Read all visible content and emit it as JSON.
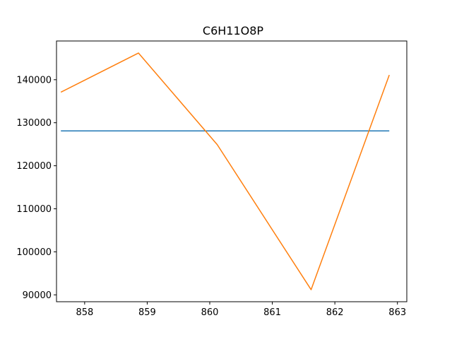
{
  "chart_data": {
    "type": "line",
    "title": "C6H11O8P",
    "xlabel": "",
    "ylabel": "",
    "xlim": [
      857.55,
      863.15
    ],
    "ylim": [
      88400,
      149000
    ],
    "x_ticks": [
      858,
      859,
      860,
      861,
      862,
      863
    ],
    "y_ticks": [
      90000,
      100000,
      110000,
      120000,
      130000,
      140000
    ],
    "x_tick_labels": [
      "858",
      "859",
      "860",
      "861",
      "862",
      "863"
    ],
    "y_tick_labels": [
      "90000",
      "100000",
      "110000",
      "120000",
      "130000",
      "140000"
    ],
    "grid": false,
    "legend": "none",
    "series": [
      {
        "color": "#1f77b4",
        "x": [
          857.62,
          862.87
        ],
        "y": [
          128100,
          128100
        ]
      },
      {
        "color": "#ff7f0e",
        "x": [
          857.62,
          858.86,
          860.12,
          861.62,
          862.87
        ],
        "y": [
          137100,
          146200,
          124900,
          91200,
          141100
        ]
      }
    ]
  }
}
